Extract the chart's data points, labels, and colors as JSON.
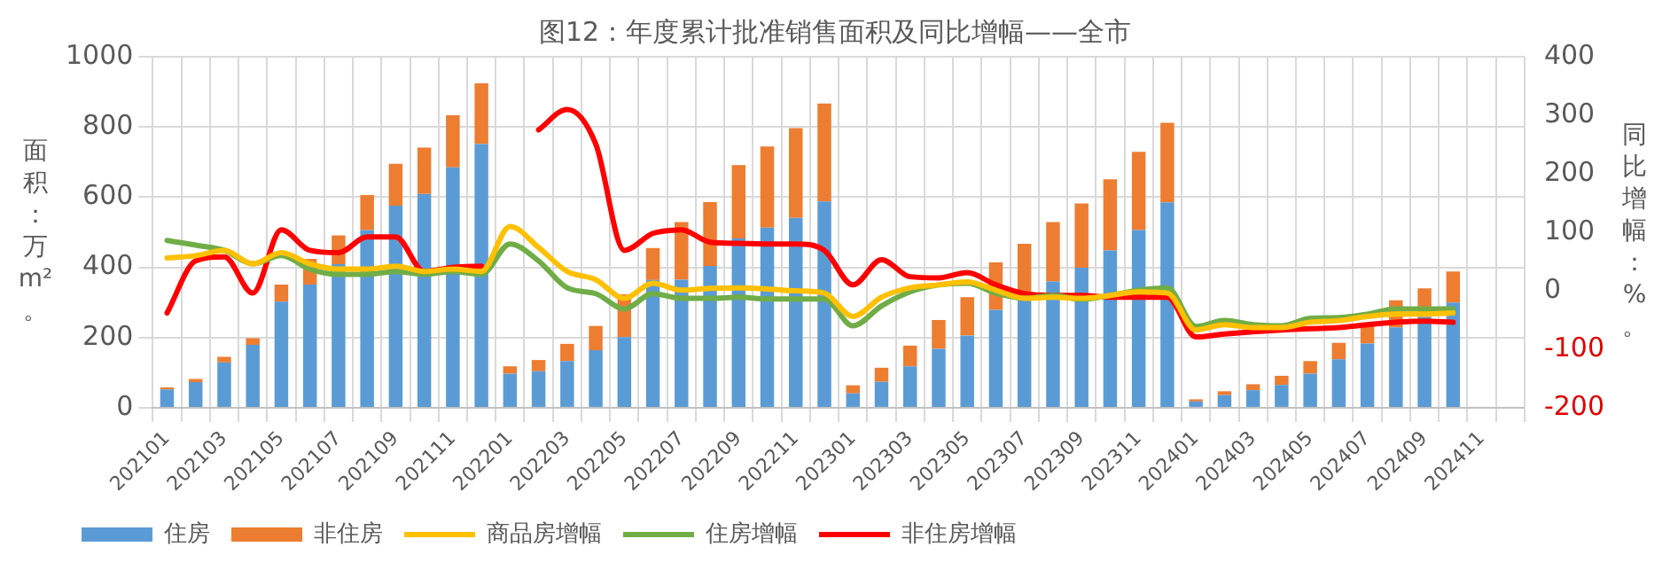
{
  "chart_data": {
    "type": "bar",
    "title": "图12：年度累计批准销售面积及同比增幅——全市",
    "ylabel": "面积：万m²。",
    "y2label": "同比增幅：%。",
    "categories": [
      "202101",
      null,
      "202103",
      null,
      "202105",
      null,
      "202107",
      null,
      "202109",
      null,
      "202111",
      null,
      "202201",
      null,
      "202203",
      null,
      "202205",
      null,
      "202207",
      null,
      "202209",
      null,
      "202211",
      null,
      "202301",
      null,
      "202303",
      null,
      "202305",
      null,
      "202307",
      null,
      "202309",
      null,
      "202311",
      null,
      "202401",
      null,
      "202403",
      null,
      "202405",
      null,
      "202407",
      null,
      "202409",
      null,
      "202411",
      null
    ],
    "stacked": true,
    "ylim": [
      0,
      1000
    ],
    "yticks": [
      0,
      200,
      400,
      600,
      800,
      1000
    ],
    "y2lim": [
      -200,
      400
    ],
    "y2ticks": [
      -200,
      -100,
      0,
      100,
      200,
      300,
      400
    ],
    "grid": true,
    "legend": "bottom",
    "marker": "none",
    "line_style": "solid",
    "series": [
      {
        "name": "住房",
        "color": "#5b9bd5",
        "values": [
          52,
          73,
          129,
          179,
          302,
          351,
          409,
          506,
          576,
          609,
          685,
          751,
          97,
          104,
          133,
          164,
          201,
          364,
          365,
          404,
          482,
          513,
          541,
          588,
          41,
          74,
          118,
          168,
          206,
          279,
          312,
          360,
          399,
          448,
          506,
          585,
          18,
          36,
          50,
          65,
          97,
          138,
          183,
          229,
          259,
          300,
          null,
          null
        ]
      },
      {
        "name": "非住房",
        "color": "#ed7d31",
        "values": [
          6,
          9,
          16,
          19,
          49,
          73,
          82,
          100,
          119,
          132,
          148,
          173,
          21,
          32,
          49,
          69,
          122,
          91,
          164,
          182,
          209,
          231,
          256,
          279,
          23,
          40,
          59,
          82,
          109,
          135,
          155,
          169,
          183,
          203,
          223,
          227,
          6,
          11,
          17,
          26,
          36,
          47,
          53,
          77,
          81,
          88,
          null,
          null
        ]
      },
      {
        "name": "商品房增幅",
        "type": "line",
        "axis": "y2",
        "color": "#ffc000",
        "values": [
          56,
          60,
          69,
          46,
          65,
          46,
          37,
          37,
          42,
          33,
          37,
          33,
          110,
          74,
          33,
          19,
          -13,
          13,
          1,
          4,
          5,
          3,
          0,
          -4,
          -44,
          -11,
          5,
          10,
          15,
          1,
          -13,
          -11,
          -13,
          -8,
          -2,
          -4,
          -67,
          -58,
          -63,
          -63,
          -54,
          -51,
          -44,
          -40,
          -40,
          -38,
          null,
          null
        ]
      },
      {
        "name": "住房增幅",
        "type": "line",
        "axis": "y2",
        "color": "#70ad47",
        "values": [
          86,
          78,
          69,
          46,
          60,
          37,
          28,
          28,
          33,
          28,
          33,
          28,
          80,
          51,
          5,
          -5,
          -31,
          -5,
          -13,
          -13,
          -11,
          -14,
          -14,
          -14,
          -60,
          -26,
          -2,
          10,
          13,
          -4,
          -13,
          -8,
          -15,
          -8,
          1,
          5,
          -61,
          -51,
          -58,
          -60,
          -47,
          -46,
          -40,
          -31,
          -31,
          -31,
          null,
          null
        ]
      },
      {
        "name": "非住房增幅",
        "type": "line",
        "axis": "y2",
        "color": "#ff0000",
        "values": [
          -38,
          51,
          58,
          -4,
          104,
          69,
          65,
          92,
          92,
          33,
          40,
          42,
          null,
          275,
          310,
          251,
          69,
          98,
          104,
          83,
          81,
          80,
          80,
          69,
          10,
          53,
          24,
          22,
          31,
          10,
          -5,
          -8,
          -8,
          -11,
          -11,
          -11,
          -79,
          -74,
          -70,
          -67,
          -65,
          -63,
          -58,
          -54,
          -52,
          -54,
          null,
          null
        ]
      }
    ]
  }
}
